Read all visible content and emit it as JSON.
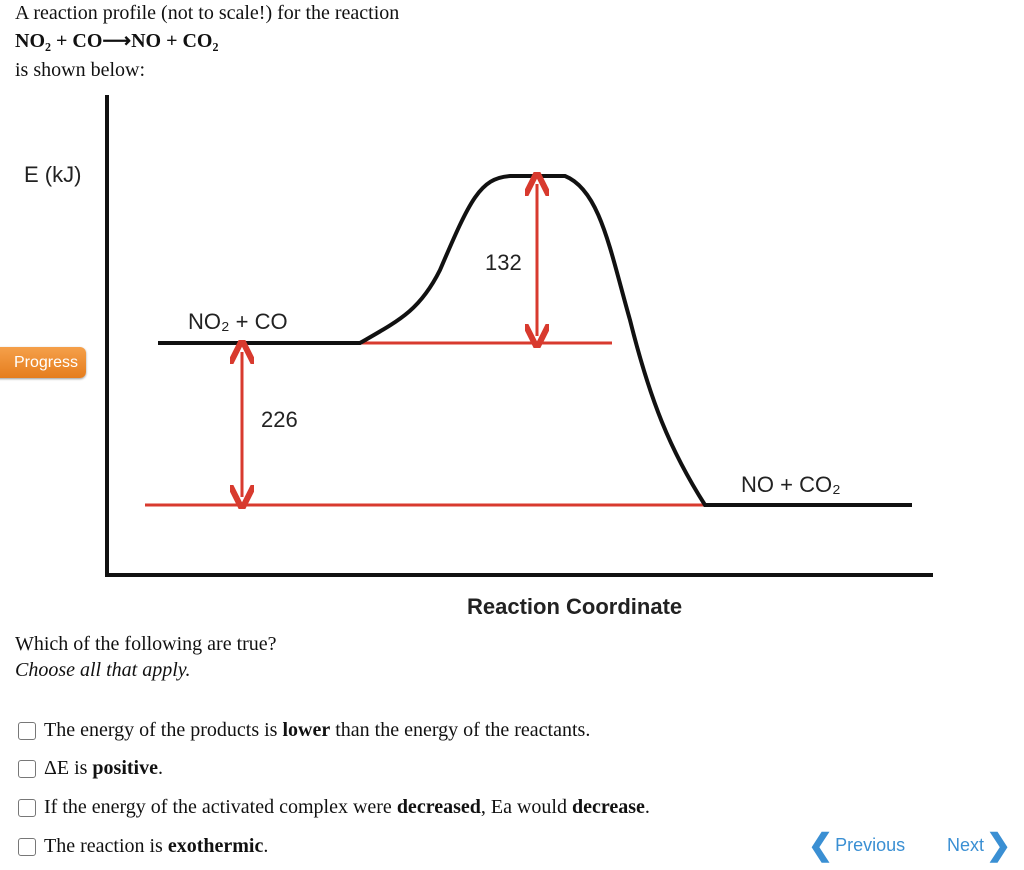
{
  "intro": {
    "line1": "A reaction profile (not to scale!) for the reaction",
    "equation": "NO₂ + CO⟶NO + CO₂",
    "line3": "is shown below:"
  },
  "diagram": {
    "y_axis_label": "E (kJ)",
    "reactants": "NO₂ + CO",
    "products": "NO + CO₂",
    "activation_label": "132",
    "delta_label": "226",
    "x_axis_label": "Reaction Coordinate"
  },
  "progress_button": "Progress",
  "question": {
    "prompt": "Which of the following are true?",
    "hint": "Choose all that apply.",
    "options": [
      [
        "The energy of the products is ",
        "lower",
        " than the energy of the reactants."
      ],
      [
        "ΔE is ",
        "positive",
        "."
      ],
      [
        "If the energy of the activated complex were ",
        "decreased",
        ", Ea would ",
        "decrease",
        "."
      ],
      [
        "The reaction is ",
        "exothermic",
        "."
      ]
    ]
  },
  "nav": {
    "previous": "Previous",
    "next": "Next"
  }
}
